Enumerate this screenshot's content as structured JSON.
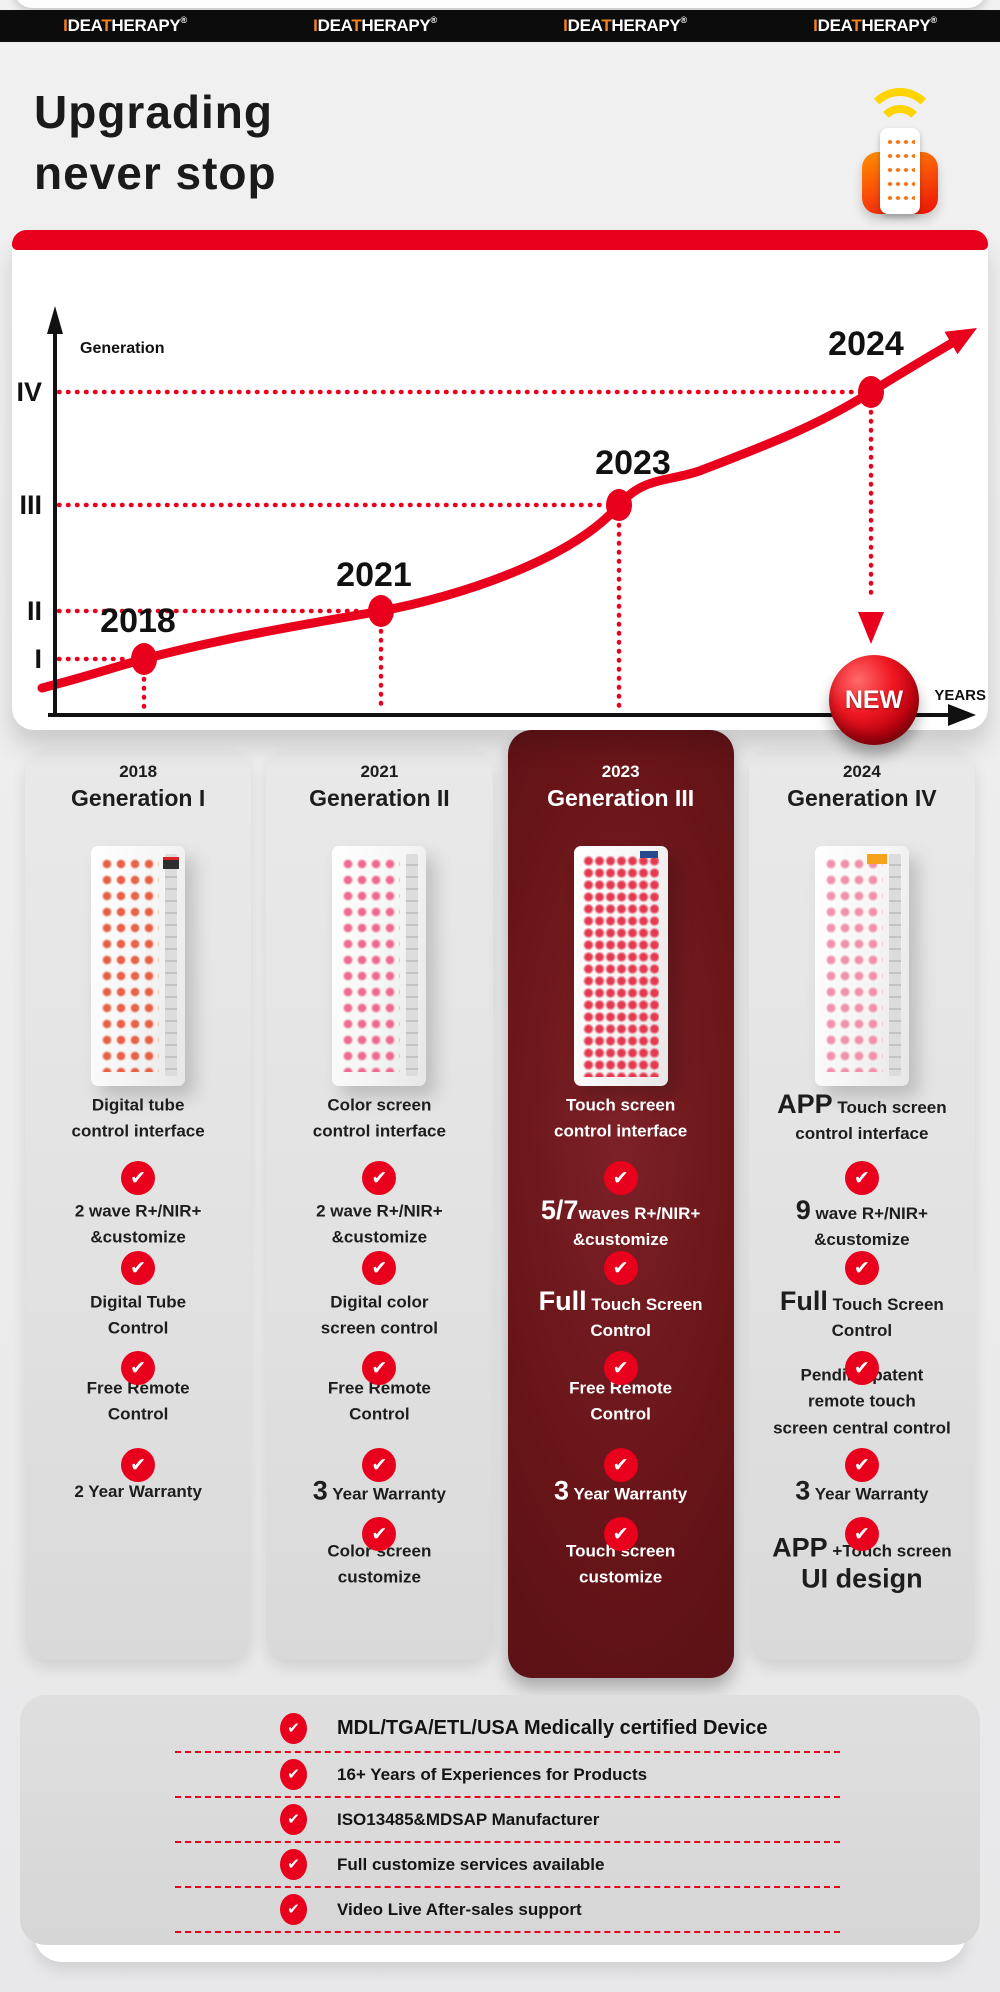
{
  "colors": {
    "accent_red": "#e8001c",
    "logo_orange": "#f58220",
    "wifi_yellow": "#ffd400",
    "dark_column": "#671418",
    "header_black": "#0c0c0c"
  },
  "icons": {
    "check_glyph": "✔"
  },
  "header": {
    "logo": {
      "i": "I",
      "dea": "DEA",
      "t": "T",
      "herapy": "HERAPY",
      "reg": "®"
    },
    "repeat_count": 4
  },
  "hero": {
    "title_line1": "Upgrading",
    "title_line2": "never stop"
  },
  "chart": {
    "y_axis_label": "Generation",
    "x_axis_label": "YEARS",
    "badge_label": "NEW",
    "points": [
      {
        "year": "2018",
        "generation": "I"
      },
      {
        "year": "2021",
        "generation": "II"
      },
      {
        "year": "2023",
        "generation": "III"
      },
      {
        "year": "2024",
        "generation": "IV"
      }
    ]
  },
  "chart_data": {
    "type": "line",
    "x": [
      2018,
      2021,
      2023,
      2024
    ],
    "y": [
      1,
      2,
      3,
      4
    ],
    "x_tick_labels": [
      "2018",
      "2021",
      "2023",
      "2024"
    ],
    "y_tick_labels": [
      "I",
      "II",
      "III",
      "IV"
    ],
    "xlabel": "YEARS",
    "ylabel": "Generation",
    "line_color": "#e8001c",
    "grid": false,
    "annotations": [
      "NEW badge with down arrow at 2024 data point",
      "dotted guide lines from axes to each data point"
    ]
  },
  "columns": [
    {
      "year": "2018",
      "name": "Generation I",
      "highlighted": false,
      "features": [
        {
          "check": false,
          "text": "Digital tube\ncontrol interface"
        },
        {
          "check": true,
          "text": "2 wave R+/NIR+\n&customize"
        },
        {
          "check": true,
          "text": "Digital Tube\nControl"
        },
        {
          "check": true,
          "text": "Free Remote\nControl"
        },
        {
          "check": true,
          "text": "2 Year Warranty"
        }
      ]
    },
    {
      "year": "2021",
      "name": "Generation II",
      "highlighted": false,
      "features": [
        {
          "check": false,
          "text": "Color screen\ncontrol interface"
        },
        {
          "check": true,
          "text": "2 wave R+/NIR+\n&customize"
        },
        {
          "check": true,
          "text": "Digital color\nscreen control"
        },
        {
          "check": true,
          "text": "Free Remote\nControl"
        },
        {
          "check": true,
          "big": "3",
          "text": " Year Warranty"
        },
        {
          "check": true,
          "text": "Color screen\ncustomize"
        }
      ]
    },
    {
      "year": "2023",
      "name": "Generation III",
      "highlighted": true,
      "features": [
        {
          "check": false,
          "text": "Touch screen\ncontrol interface"
        },
        {
          "check": true,
          "big": "5/7",
          "text": "waves R+/NIR+\n&customize"
        },
        {
          "check": true,
          "big": "Full",
          "text": " Touch Screen\nControl"
        },
        {
          "check": true,
          "text": "Free Remote\nControl"
        },
        {
          "check": true,
          "big": "3",
          "text": " Year Warranty"
        },
        {
          "check": true,
          "text": "Touch screen\ncustomize"
        }
      ]
    },
    {
      "year": "2024",
      "name": "Generation IV",
      "highlighted": false,
      "features": [
        {
          "check": false,
          "big": "APP",
          "text": " Touch screen\ncontrol interface"
        },
        {
          "check": true,
          "big": "9",
          "text": " wave R+/NIR+\n&customize"
        },
        {
          "check": true,
          "big": "Full",
          "text": " Touch Screen\nControl"
        },
        {
          "check": true,
          "text": "Pending patent\nremote touch\nscreen central control"
        },
        {
          "check": true,
          "big": "3",
          "text": " Year Warranty"
        },
        {
          "check": true,
          "big": "APP",
          "text": " +Touch screen",
          "big2": "UI design"
        }
      ]
    }
  ],
  "certifications": {
    "items": [
      {
        "text": "MDL/TGA/ETL/USA Medically certified Device",
        "emphasized": true
      },
      {
        "text": "16+ Years of Experiences for Products",
        "emphasized": false
      },
      {
        "text": "ISO13485&MDSAP Manufacturer",
        "emphasized": false
      },
      {
        "text": "Full customize services available",
        "emphasized": false
      },
      {
        "text": "Video Live After-sales support",
        "emphasized": false
      }
    ]
  }
}
